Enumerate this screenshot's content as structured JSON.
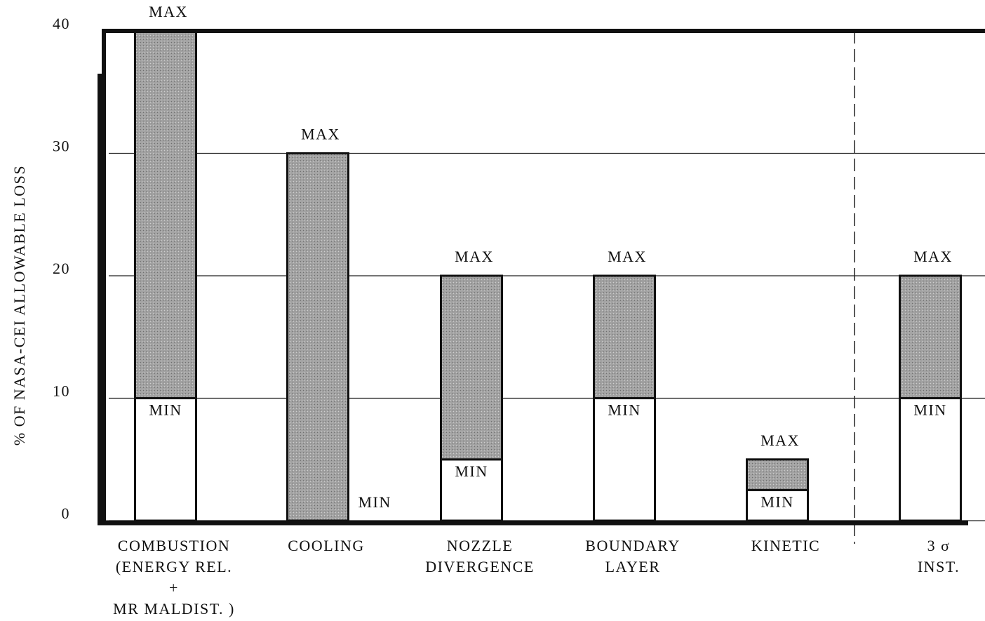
{
  "chart_data": {
    "type": "range-bar",
    "y_label": "% OF NASA-CEI ALLOWABLE LOSS",
    "categories": [
      [
        "COMBUSTION",
        "(ENERGY REL.",
        "+",
        "MR MALDIST. )"
      ],
      [
        "COOLING"
      ],
      [
        "NOZZLE",
        "DIVERGENCE"
      ],
      [
        "BOUNDARY",
        "LAYER"
      ],
      [
        "KINETIC"
      ],
      [
        "3 σ",
        "INST."
      ]
    ],
    "series": [
      {
        "name": "MIN",
        "values": [
          10,
          0,
          5,
          10,
          2.5,
          10
        ]
      },
      {
        "name": "MAX",
        "values": [
          40,
          30,
          20,
          20,
          5,
          20
        ]
      }
    ],
    "color": "#a2a2a2",
    "ylim": [
      0,
      40
    ],
    "yticks": [
      0,
      10,
      20,
      30,
      40
    ],
    "grid": true
  }
}
